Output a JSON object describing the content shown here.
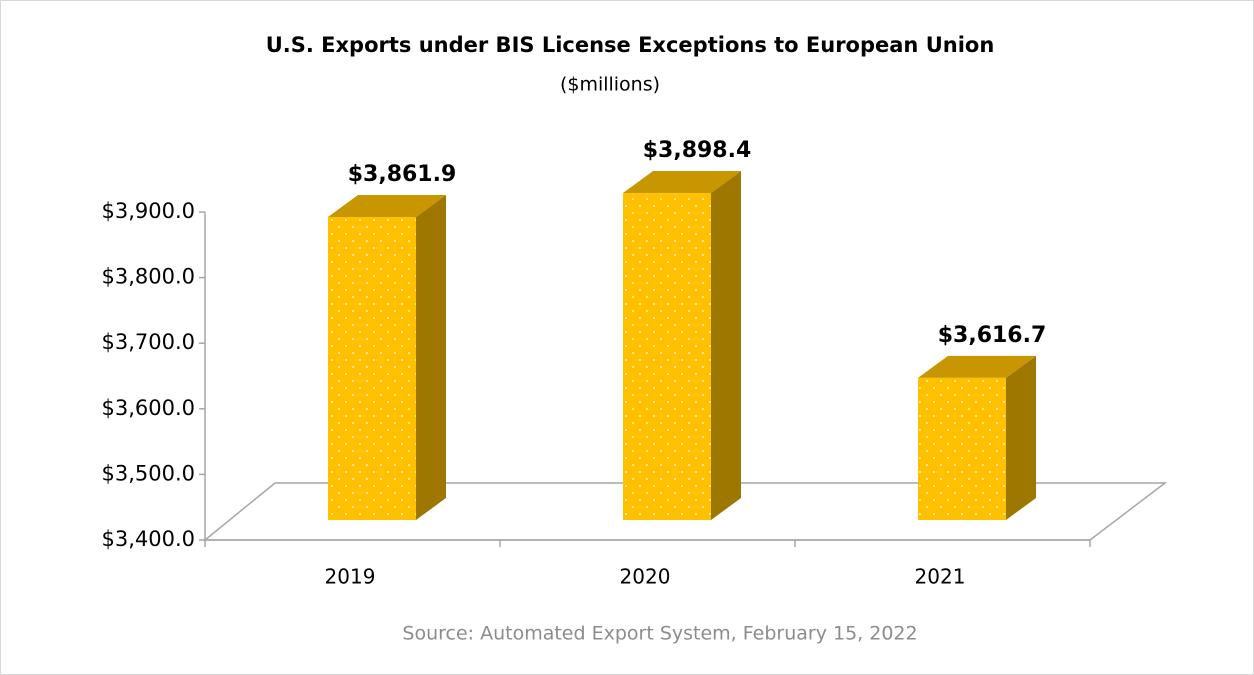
{
  "chart_data": {
    "type": "bar3d",
    "title": "U.S. Exports under BIS License Exceptions to European Union",
    "subtitle": "($millions)",
    "source": "Source: Automated Export System, February 15, 2022",
    "categories": [
      "2019",
      "2020",
      "2021"
    ],
    "values": [
      3861.9,
      3898.4,
      3616.7
    ],
    "value_labels": [
      "$3,861.9",
      "$3,898.4",
      "$3,616.7"
    ],
    "color": "#FFC000",
    "ylim": [
      3400,
      3900
    ],
    "yticks": [
      {
        "value": 3400,
        "label": "$3,400.0"
      },
      {
        "value": 3500,
        "label": "$3,500.0"
      },
      {
        "value": 3600,
        "label": "$3,600.0"
      },
      {
        "value": 3700,
        "label": "$3,700.0"
      },
      {
        "value": 3800,
        "label": "$3,800.0"
      },
      {
        "value": 3900,
        "label": "$3,900.0"
      }
    ]
  }
}
